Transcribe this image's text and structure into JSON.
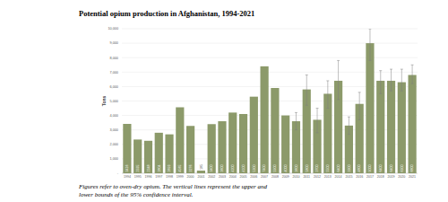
{
  "chart_data": {
    "type": "bar",
    "title": "Potential opium production in Afghanistan, 1994-2021",
    "y_label": "Tons",
    "caption": "Figures refer to oven-dry opium. The vertical lines represent the upper and lower bounds of the 95% confidence interval.",
    "categories": [
      "1994",
      "1995",
      "1996",
      "1997",
      "1998",
      "1999",
      "2000",
      "2001",
      "2002",
      "2003",
      "2004",
      "2005",
      "2006",
      "2007",
      "2008",
      "2009",
      "2010",
      "2011",
      "2012",
      "2013",
      "2014",
      "2015",
      "2016",
      "2017",
      "2018",
      "2019",
      "2020",
      "2021"
    ],
    "values": [
      3416,
      2335,
      2248,
      2804,
      2693,
      4565,
      3276,
      185,
      3400,
      3600,
      4200,
      4100,
      5300,
      7400,
      5900,
      4000,
      3600,
      5800,
      3700,
      5500,
      6400,
      3300,
      4800,
      9000,
      6400,
      6400,
      6300,
      6800
    ],
    "error_low": [
      null,
      null,
      null,
      null,
      null,
      null,
      null,
      null,
      null,
      null,
      null,
      null,
      null,
      null,
      null,
      null,
      3000,
      4700,
      2800,
      4500,
      5100,
      2700,
      3700,
      7800,
      5500,
      5700,
      5700,
      6200
    ],
    "error_high": [
      null,
      null,
      null,
      null,
      null,
      null,
      null,
      null,
      null,
      null,
      null,
      null,
      null,
      null,
      null,
      null,
      4200,
      6800,
      4500,
      6400,
      7800,
      3900,
      5600,
      10000,
      7100,
      7200,
      7200,
      7500
    ],
    "color": "#8c9a6a",
    "ylim": [
      0,
      10000
    ],
    "yticks": [
      {
        "value": 0,
        "label": "-"
      },
      {
        "value": 1000,
        "label": "1,000"
      },
      {
        "value": 2000,
        "label": "2,000"
      },
      {
        "value": 3000,
        "label": "3,000"
      },
      {
        "value": 4000,
        "label": "4,000"
      },
      {
        "value": 5000,
        "label": "5,000"
      },
      {
        "value": 6000,
        "label": "6,000"
      },
      {
        "value": 7000,
        "label": "7,000"
      },
      {
        "value": 8000,
        "label": "8,000"
      },
      {
        "value": 9000,
        "label": "9,000"
      },
      {
        "value": 10000,
        "label": "10,000"
      }
    ],
    "grid": true,
    "data_labels": true
  }
}
